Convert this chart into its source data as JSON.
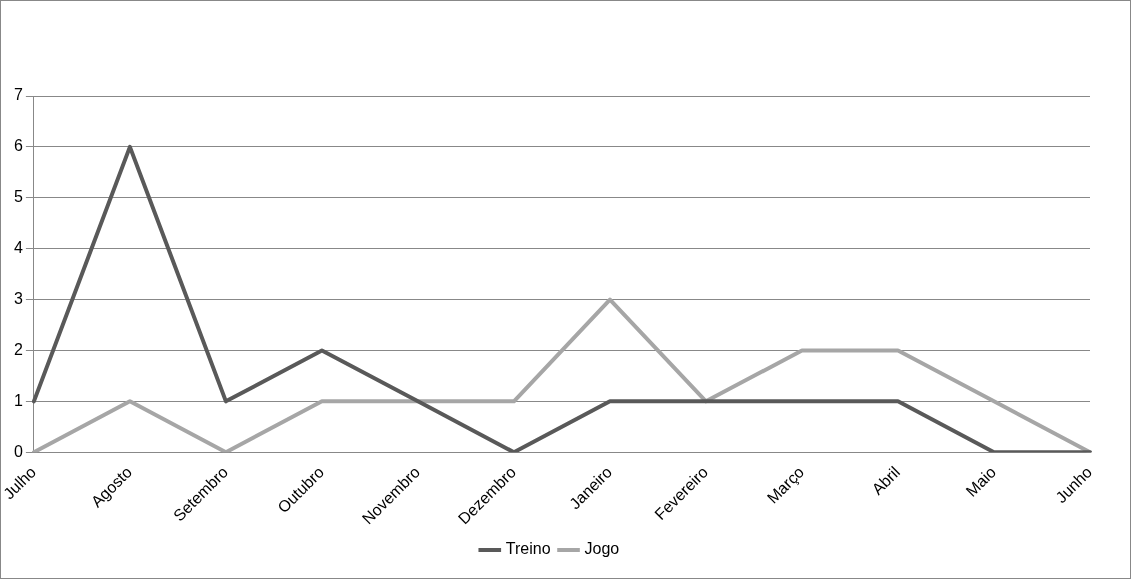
{
  "chart_data": {
    "type": "line",
    "categories": [
      "Julho",
      "Agosto",
      "Setembro",
      "Outubro",
      "Novembro",
      "Dezembro",
      "Janeiro",
      "Fevereiro",
      "Março",
      "Abril",
      "Maio",
      "Junho"
    ],
    "series": [
      {
        "name": "Treino",
        "color": "#595959",
        "values": [
          1,
          6,
          1,
          2,
          1,
          0,
          1,
          1,
          1,
          1,
          0,
          0
        ]
      },
      {
        "name": "Jogo",
        "color": "#a6a6a6",
        "values": [
          0,
          1,
          0,
          1,
          1,
          1,
          3,
          1,
          2,
          2,
          1,
          0
        ]
      }
    ],
    "ylim": [
      0,
      7
    ],
    "yticks": [
      0,
      1,
      2,
      3,
      4,
      5,
      6,
      7
    ],
    "grid": "y",
    "legend": "bottom",
    "marker": "none",
    "line_style": "solid"
  }
}
